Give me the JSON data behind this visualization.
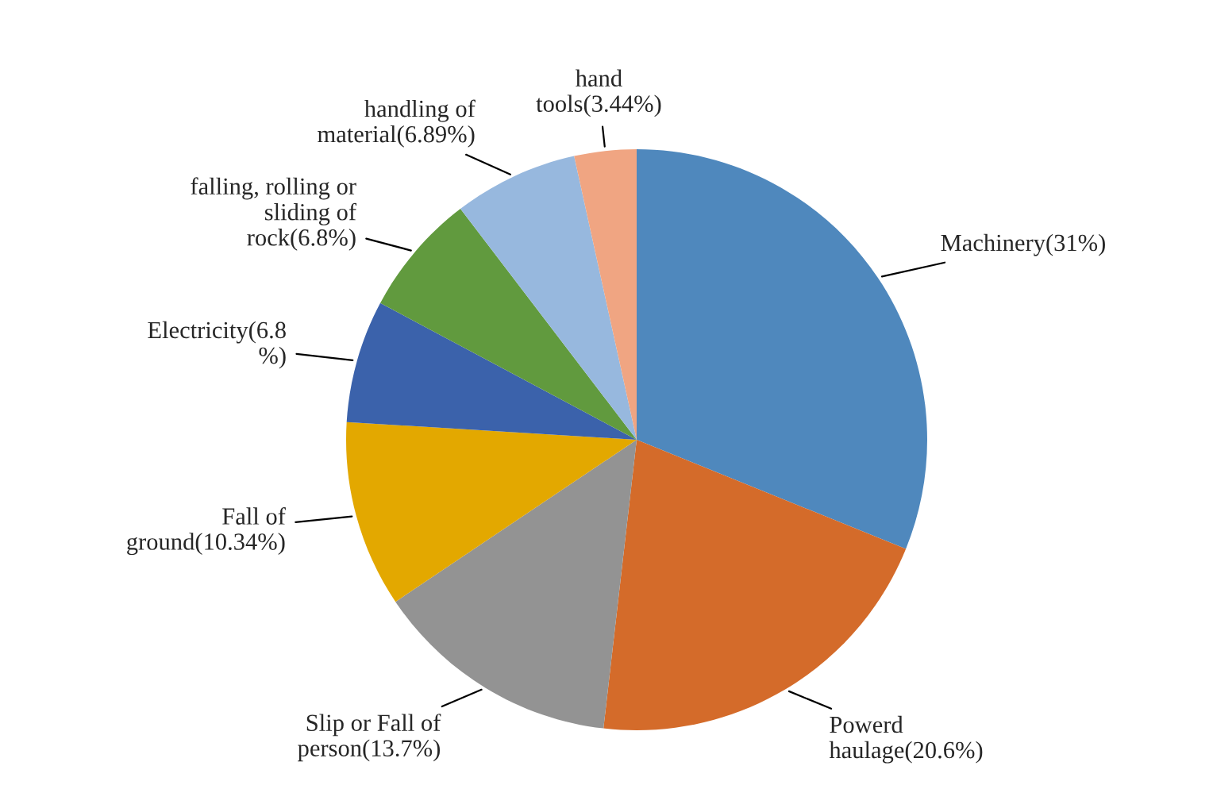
{
  "chart_data": {
    "type": "pie",
    "categories": [
      "Machinery(31%)",
      "Powerd\nhaulage(20.6%)",
      "Slip or Fall of\nperson(13.7%)",
      "Fall of\nground(10.34%)",
      "Electricity(6.8\n%)",
      "falling, rolling or\nsliding of\nrock(6.8%)",
      "handling of\nmaterial(6.89%)",
      "hand\ntools(3.44%)"
    ],
    "values": [
      31,
      20.6,
      13.7,
      10.34,
      6.8,
      6.8,
      6.89,
      3.44
    ],
    "colors": [
      "#4f88bd",
      "#d46b2a",
      "#939393",
      "#e3a800",
      "#3b62ab",
      "#619a3e",
      "#97b8de",
      "#f0a582"
    ]
  }
}
